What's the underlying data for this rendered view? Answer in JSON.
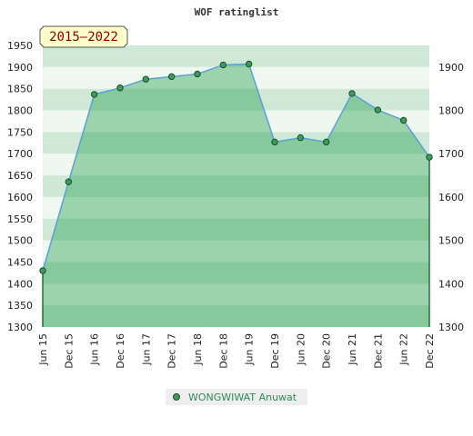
{
  "chart_data": {
    "type": "area",
    "title": "WOF ratinglist",
    "badge": "2015–2022",
    "categories": [
      "Jun 15",
      "Dec 15",
      "Jun 16",
      "Dec 16",
      "Jun 17",
      "Dec 17",
      "Jun 18",
      "Dec 18",
      "Jun 19",
      "Dec 19",
      "Jun 20",
      "Dec 20",
      "Jun 21",
      "Dec 21",
      "Jun 22",
      "Dec 22"
    ],
    "series": [
      {
        "name": "WONGWIWAT Anuwat",
        "values": [
          1430,
          1635,
          1837,
          1852,
          1872,
          1878,
          1884,
          1905,
          1907,
          1727,
          1737,
          1727,
          1839,
          1801,
          1777,
          1692
        ]
      }
    ],
    "ylim": [
      1300,
      1950
    ],
    "yticks_left": [
      1300,
      1350,
      1400,
      1450,
      1500,
      1550,
      1600,
      1650,
      1700,
      1750,
      1800,
      1850,
      1900,
      1950
    ],
    "yticks_right": [
      1300,
      1400,
      1500,
      1600,
      1700,
      1800,
      1900
    ],
    "grid": true,
    "legend": "bottom-center",
    "colors": {
      "line": "#5f9fd6",
      "marker_fill": "#3a9b5c",
      "fill_dark": "#7cc494",
      "fill_light": "#9bd3ad",
      "band_dark": "#cfe9d6",
      "band_light": "#eef8f0",
      "badge_bg": "#ffffcc",
      "legend_bg": "#eeeeee"
    }
  }
}
